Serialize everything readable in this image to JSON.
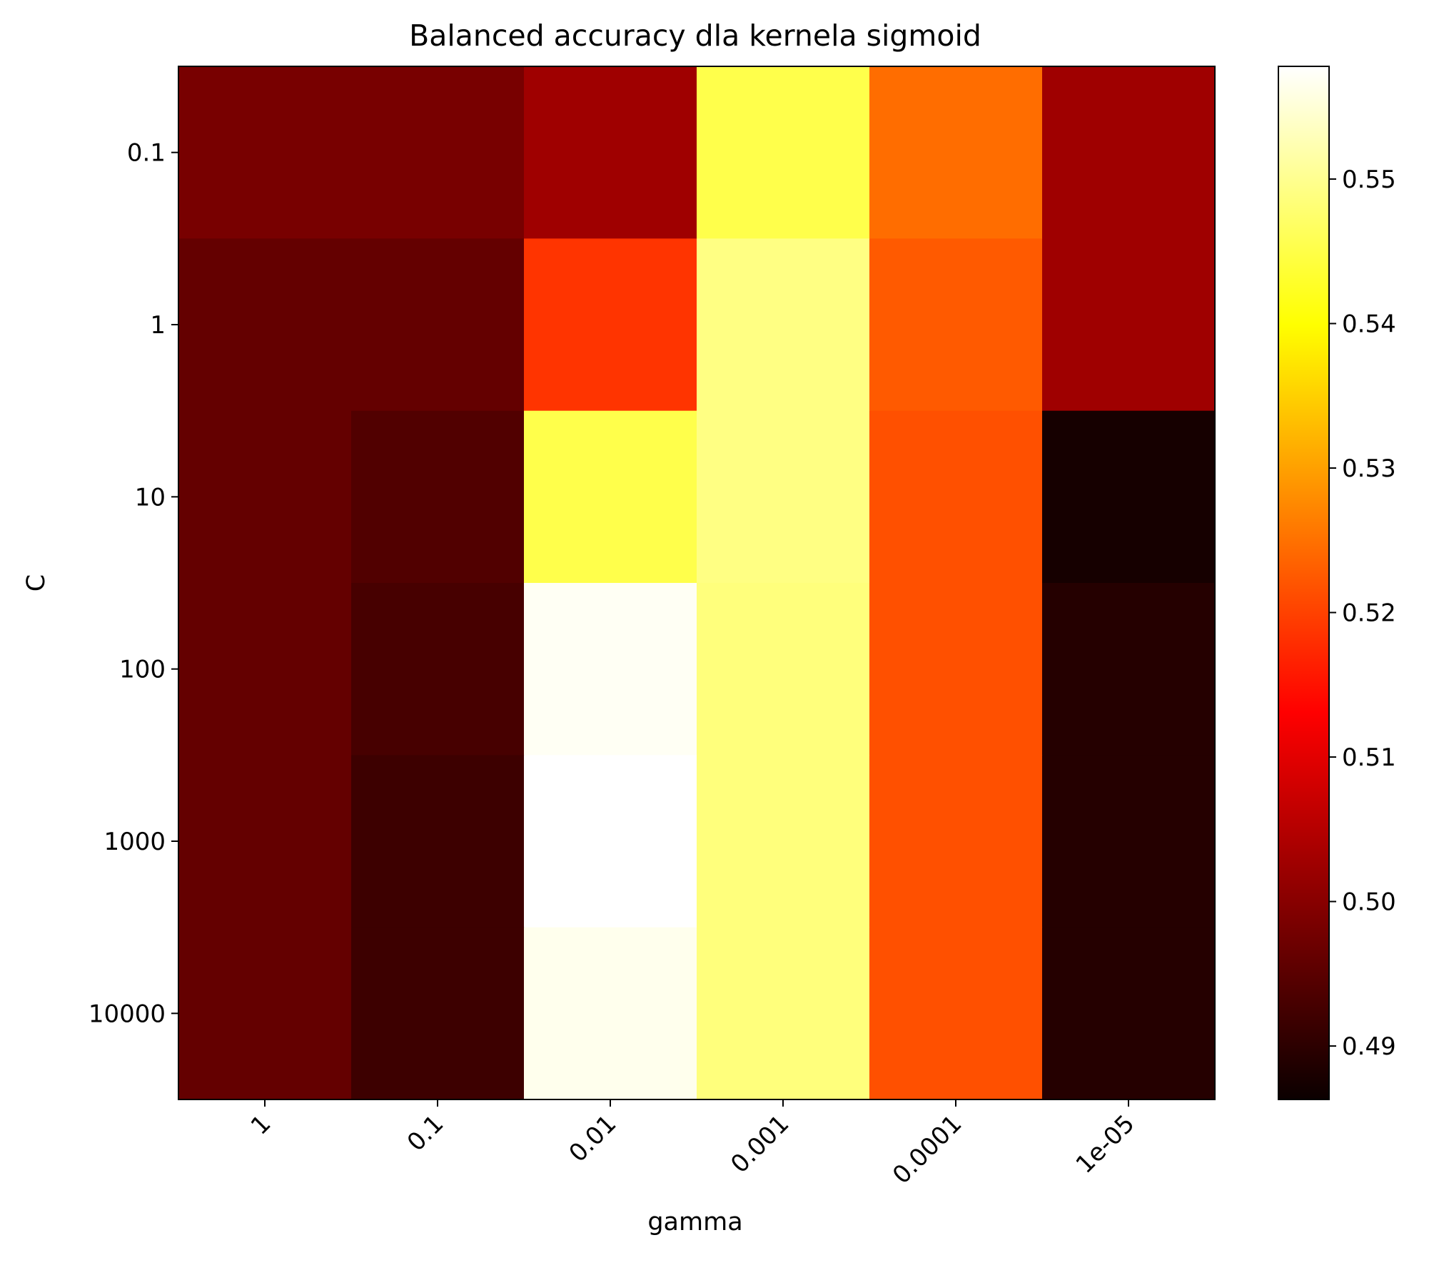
{
  "chart_data": {
    "type": "heatmap",
    "title": "Balanced accuracy dla kernela sigmoid",
    "xlabel": "gamma",
    "ylabel": "C",
    "x_categories": [
      "1",
      "0.1",
      "0.01",
      "0.001",
      "0.0001",
      "1e-05"
    ],
    "y_categories": [
      "0.1",
      "1",
      "10",
      "100",
      "1000",
      "10000"
    ],
    "values": [
      [
        0.4975,
        0.4975,
        0.5015,
        0.545,
        0.524,
        0.5015
      ],
      [
        0.4955,
        0.4955,
        0.518,
        0.549,
        0.522,
        0.5015
      ],
      [
        0.4955,
        0.4935,
        0.545,
        0.549,
        0.521,
        0.4875
      ],
      [
        0.4955,
        0.4925,
        0.557,
        0.5485,
        0.521,
        0.489
      ],
      [
        0.4955,
        0.4915,
        0.5578,
        0.5485,
        0.521,
        0.489
      ],
      [
        0.4955,
        0.4915,
        0.5565,
        0.5485,
        0.521,
        0.489
      ]
    ],
    "colormap": "hot",
    "colorbar": {
      "min": 0.4863,
      "max": 0.5578,
      "ticks": [
        "0.49",
        "0.50",
        "0.51",
        "0.52",
        "0.53",
        "0.54",
        "0.55"
      ]
    },
    "grid": false
  }
}
